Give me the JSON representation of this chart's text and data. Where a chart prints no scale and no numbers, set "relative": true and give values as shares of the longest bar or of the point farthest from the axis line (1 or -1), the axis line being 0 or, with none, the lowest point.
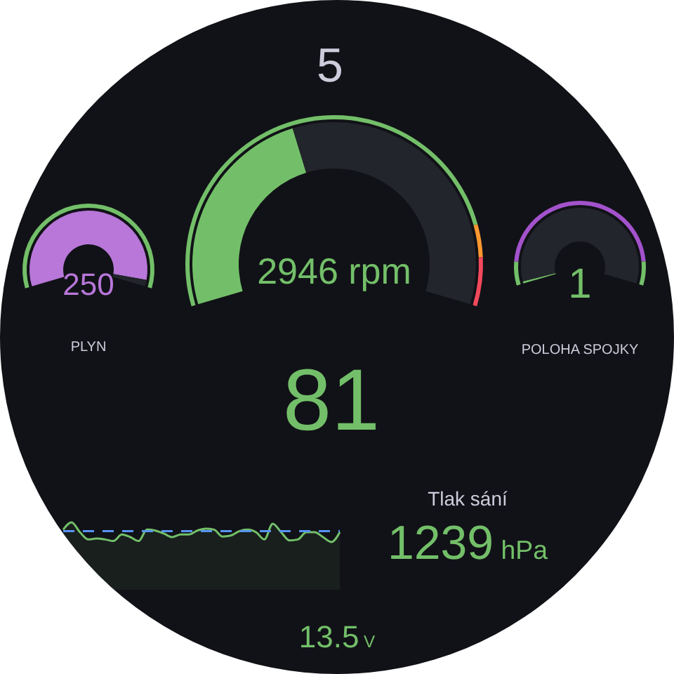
{
  "chart_data": [
    {
      "type": "other",
      "title": "5"
    },
    {
      "type": "donut",
      "annotations": [
        "250"
      ],
      "xlabel": "PLYN",
      "series": [
        {
          "values": [
            97,
            3
          ],
          "colors": [
            "#b877d9",
            "#22252b"
          ]
        },
        {
          "values": [
            100
          ],
          "colors": [
            "#73bf69"
          ]
        }
      ]
    },
    {
      "type": "donut",
      "annotations": [
        "2946 rpm"
      ],
      "series": [
        {
          "values": [
            42,
            58
          ],
          "colors": [
            "#73bf69",
            "#22252b"
          ]
        },
        {
          "values": [
            85,
            6,
            9
          ],
          "colors": [
            "#73bf69",
            "#ff9830",
            "#f2495c"
          ]
        }
      ]
    },
    {
      "type": "donut",
      "annotations": [
        "1"
      ],
      "xlabel": "POLOHA SPOJKY",
      "series": [
        {
          "values": [
            1,
            99
          ],
          "colors": [
            "#73bf69",
            "#22252b"
          ]
        },
        {
          "values": [
            10,
            80,
            10
          ],
          "colors": [
            "#73bf69",
            "#a352cc",
            "#73bf69"
          ]
        }
      ]
    },
    {
      "type": "other",
      "annotations": [
        "81"
      ]
    },
    {
      "type": "area",
      "relative": true,
      "categories": [
        null,
        null,
        null,
        null,
        null,
        null,
        null,
        null,
        null,
        null,
        null,
        null,
        null,
        null,
        null,
        null,
        null,
        null,
        null,
        null,
        null,
        null,
        null,
        null,
        null,
        null,
        null,
        null,
        null,
        null,
        null,
        null,
        null,
        null
      ],
      "series": [
        {
          "color": "#73bf69",
          "values": [
            0.63,
            1,
            0.5,
            0.13,
            0.18,
            0.13,
            0.05,
            0.38,
            0.25,
            0.05,
            0.63,
            0.58,
            0.43,
            0.25,
            0.38,
            0.38,
            0.58,
            0.68,
            0.63,
            0.28,
            0.33,
            0.55,
            0.63,
            0.5,
            0.13,
            0.93,
            0.5,
            0.08,
            0.13,
            0.5,
            0.5,
            0.25,
            0,
            0.5
          ]
        }
      ],
      "ref_lines": [
        {
          "axis": "y",
          "value": 0.55,
          "color": "#5794f2",
          "line_style": "dashed"
        }
      ]
    },
    {
      "type": "other",
      "title": "Tlak sání",
      "annotations": [
        "1239",
        "hPa"
      ]
    },
    {
      "type": "other",
      "annotations": [
        "13.5",
        "V"
      ]
    }
  ]
}
